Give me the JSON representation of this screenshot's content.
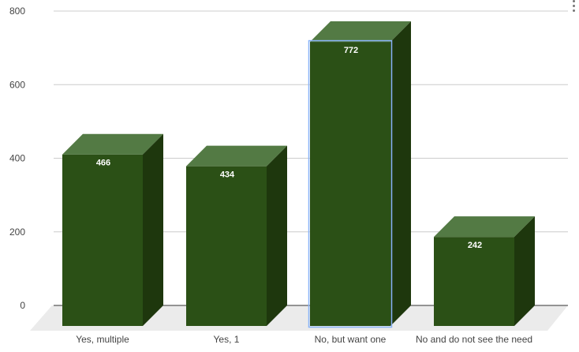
{
  "chart_data": {
    "type": "bar",
    "style": "3d",
    "categories": [
      "Yes, multiple",
      "Yes, 1",
      "No, but want one",
      "No and do not see the need"
    ],
    "values": [
      466,
      434,
      772,
      242
    ],
    "data_labels": [
      "466",
      "434",
      "772",
      "242"
    ],
    "y_ticks": [
      "0",
      "200",
      "400",
      "600",
      "800"
    ],
    "ylim": [
      0,
      800
    ],
    "grid": true,
    "legend": "none",
    "selected_index": 2,
    "colors": {
      "front": "#2b5016",
      "top": "#537a44",
      "side": "#1e370d",
      "floor": "#ebebeb",
      "grid": "#cccccc",
      "axis": "#333333",
      "label": "#444444",
      "data_label": "#ffffff",
      "selection": "#8ab4f8"
    }
  },
  "menu": {
    "icon": "more-vert-icon"
  }
}
